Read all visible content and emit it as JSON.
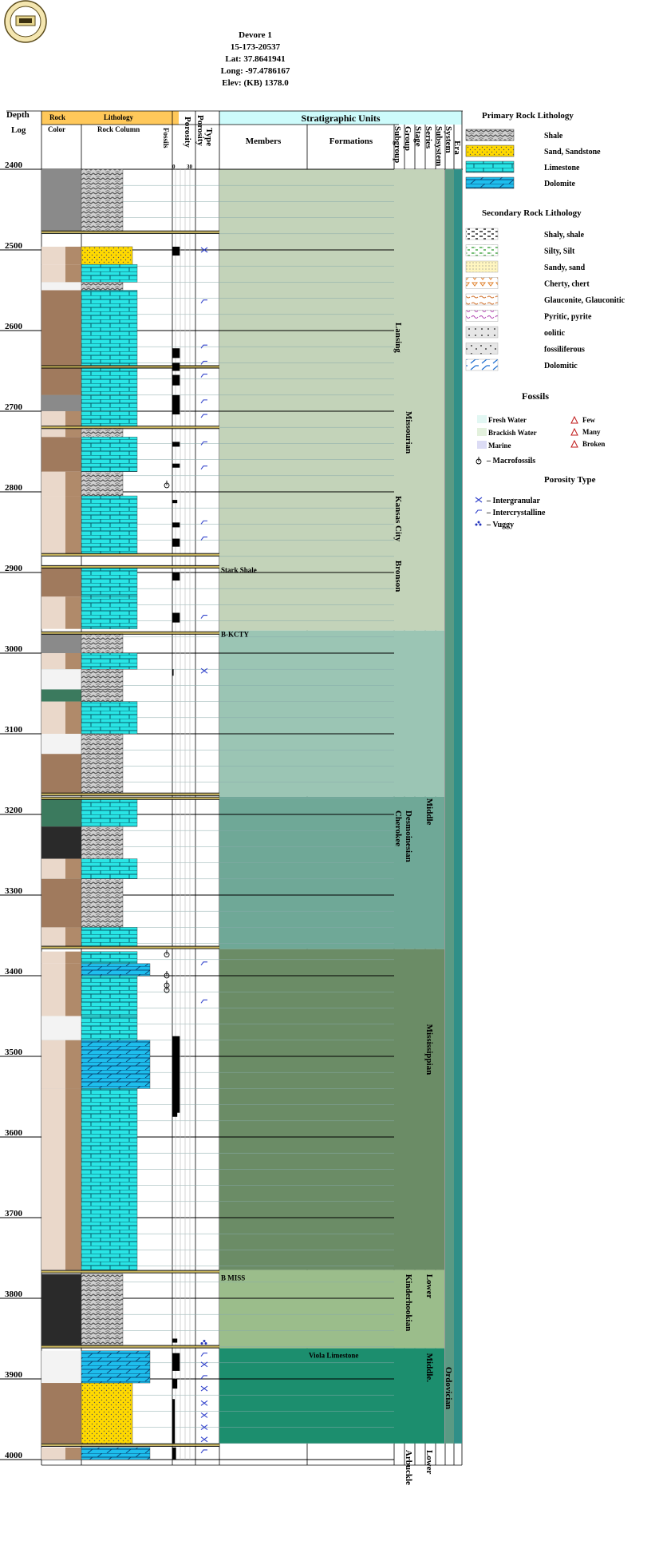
{
  "well": {
    "name": "Devore 1",
    "api": "15-173-20537",
    "lat": "Lat: 37.8641941",
    "long": "Long: -97.4786167",
    "elev": "Elev: (KB) 1378.0"
  },
  "columns": {
    "depth": "Depth",
    "log": "Log",
    "rock": "Rock",
    "color": "Color",
    "lithology": "Lithology",
    "rock_column": "Rock Column",
    "fossils": "Fossils",
    "porosity": "Porosity",
    "porosity_scale_min": "0",
    "porosity_scale_max": "30",
    "type": "Type",
    "porosity_type": "Porosity",
    "strat_units": "Stratigraphic Units",
    "members": "Members",
    "formations": "Formations",
    "subgroup": "Subgroup",
    "group": "Group",
    "stage": "Stage",
    "series": "Series",
    "subsystem": "Subsystem",
    "system": "System",
    "era": "Era"
  },
  "depths": [
    {
      "label": "2400",
      "value": 2400
    },
    {
      "label": "2500",
      "value": 2500
    },
    {
      "label": "2600",
      "value": 2600
    },
    {
      "label": "2700",
      "value": 2700
    },
    {
      "label": "2800",
      "value": 2800
    },
    {
      "label": "2900",
      "value": 2900
    },
    {
      "label": "3000",
      "value": 3000
    },
    {
      "label": "3100",
      "value": 3100
    },
    {
      "label": "3200",
      "value": 3200
    },
    {
      "label": "3300",
      "value": 3300
    },
    {
      "label": "3400",
      "value": 3400
    },
    {
      "label": "3500",
      "value": 3500
    },
    {
      "label": "3600",
      "value": 3600
    },
    {
      "label": "3700",
      "value": 3700
    },
    {
      "label": "3800",
      "value": 3800
    },
    {
      "label": "3900",
      "value": 3900
    },
    {
      "label": "4000",
      "value": 4000
    }
  ],
  "units": {
    "members": [
      {
        "name": "Stark Shale",
        "top": 2892
      },
      {
        "name": "B-KCTY",
        "top": 2972
      },
      {
        "name": "B MISS",
        "top": 3770
      }
    ],
    "formations": [
      {
        "name": "Viola Limestone",
        "top": 3866
      }
    ],
    "subgroups": [
      {
        "name": "Lansing",
        "from": 2590,
        "to": 2660
      },
      {
        "name": "Kansas City",
        "from": 2805,
        "to": 2880
      },
      {
        "name": "Bronson",
        "from": 2885,
        "to": 2945
      },
      {
        "name": "Cherokee",
        "from": 3195,
        "to": 3250
      }
    ],
    "stages": [
      {
        "name": "Missourian",
        "from": 2700,
        "to": 2790
      },
      {
        "name": "Desmoinesian",
        "from": 3195,
        "to": 3255
      },
      {
        "name": "Kinderhookian",
        "from": 3770,
        "to": 3850
      },
      {
        "name": "Arbuckle",
        "from": 3988,
        "to": 4040
      }
    ],
    "series": [
      {
        "name": "Middle",
        "from": 3180,
        "to": 3215
      },
      {
        "name": "Mississippian",
        "from": 3460,
        "to": 3600
      },
      {
        "name": "Lower",
        "from": 3770,
        "to": 3800
      },
      {
        "name": "Middle.",
        "from": 3868,
        "to": 3910
      },
      {
        "name": "Lower",
        "from": 3988,
        "to": 4015
      }
    ],
    "systems": [
      {
        "name": "Ordovician",
        "from": 3885,
        "to": 3945
      }
    ],
    "colors": [
      {
        "from": 2400,
        "to": 2972,
        "color": "#c3d3b9"
      },
      {
        "from": 2972,
        "to": 3178,
        "color": "#9bc5b4"
      },
      {
        "from": 3178,
        "to": 3367,
        "color": "#6fa897"
      },
      {
        "from": 3367,
        "to": 3765,
        "color": "#6b8c66"
      },
      {
        "from": 3765,
        "to": 3862,
        "color": "#9bbd8b"
      },
      {
        "from": 3862,
        "to": 3980,
        "color": "#1c8e6e"
      }
    ]
  },
  "legend": {
    "primary_title": "Primary Rock Lithology",
    "primary": [
      {
        "label": "Shale",
        "pattern": "shale"
      },
      {
        "label": "Sand, Sandstone",
        "pattern": "sand"
      },
      {
        "label": "Limestone",
        "pattern": "limestone"
      },
      {
        "label": "Dolomite",
        "pattern": "dolomite"
      }
    ],
    "secondary_title": "Secondary Rock Lithology",
    "secondary": [
      {
        "label": "Shaly, shale",
        "pattern": "shaly"
      },
      {
        "label": "Silty, Silt",
        "pattern": "silty"
      },
      {
        "label": "Sandy, sand",
        "pattern": "sandy"
      },
      {
        "label": "Cherty, chert",
        "pattern": "cherty"
      },
      {
        "label": "Glauconite, Glauconitic",
        "pattern": "glauconite"
      },
      {
        "label": "Pyritic, pyrite",
        "pattern": "pyritic"
      },
      {
        "label": "oolitic",
        "pattern": "oolitic"
      },
      {
        "label": "fossiliferous",
        "pattern": "fossiliferous"
      },
      {
        "label": "Dolomitic",
        "pattern": "dolomitic"
      }
    ],
    "fossils_title": "Fossils",
    "fossils_env": [
      {
        "label": "Fresh Water",
        "color": "#e2f7f3"
      },
      {
        "label": "Brackish Water",
        "color": "#e3f1dd"
      },
      {
        "label": "Marine",
        "color": "#dcdcf5"
      }
    ],
    "fossils_abundance": [
      {
        "label": "Few"
      },
      {
        "label": "Many"
      },
      {
        "label": "Broken"
      }
    ],
    "macrofossils": "– Macrofossils",
    "porosity_title": "Porosity Type",
    "porosity_types": [
      {
        "label": "– Intergranular",
        "symbol": "x"
      },
      {
        "label": "– Intercrystalline",
        "symbol": "slash"
      },
      {
        "label": "– Vuggy",
        "symbol": "vug"
      }
    ]
  },
  "chart_data": {
    "type": "table",
    "title": "Devore 1",
    "depth_range": [
      2400,
      4000
    ],
    "color_scheme": {
      "shale": "#8a8a8a",
      "shale_dark": "#2a2a2a",
      "brown": "#a07a5d",
      "tan": "#ead8ca",
      "green": "#3b7a5e",
      "light": "#f3f3f3",
      "limestone": "#29e5e5",
      "sand": "#ffd900",
      "dolomite": "#1ebeed"
    },
    "lithology": [
      {
        "top": 2400,
        "bottom": 2478,
        "lith": "shale",
        "color": "shale"
      },
      {
        "top": 2496,
        "bottom": 2518,
        "lith": "sand",
        "color": "tan"
      },
      {
        "top": 2518,
        "bottom": 2540,
        "lith": "limestone",
        "color": "tan"
      },
      {
        "top": 2540,
        "bottom": 2550,
        "lith": "shale",
        "color": "light"
      },
      {
        "top": 2550,
        "bottom": 2680,
        "lith": "limestone",
        "color": "brown"
      },
      {
        "top": 2680,
        "bottom": 2700,
        "lith": "limestone",
        "color": "shale"
      },
      {
        "top": 2700,
        "bottom": 2720,
        "lith": "limestone",
        "color": "tan"
      },
      {
        "top": 2720,
        "bottom": 2732,
        "lith": "shale",
        "color": "tan"
      },
      {
        "top": 2732,
        "bottom": 2775,
        "lith": "limestone",
        "color": "brown"
      },
      {
        "top": 2775,
        "bottom": 2805,
        "lith": "shale",
        "color": "tan"
      },
      {
        "top": 2805,
        "bottom": 2878,
        "lith": "limestone",
        "color": "tan"
      },
      {
        "top": 2893,
        "bottom": 2930,
        "lith": "limestone",
        "color": "brown"
      },
      {
        "top": 2930,
        "bottom": 2970,
        "lith": "limestone",
        "color": "tan"
      },
      {
        "top": 2975,
        "bottom": 3000,
        "lith": "shale",
        "color": "shale"
      },
      {
        "top": 3000,
        "bottom": 3020,
        "lith": "limestone",
        "color": "tan"
      },
      {
        "top": 3020,
        "bottom": 3045,
        "lith": "shale",
        "color": "light"
      },
      {
        "top": 3045,
        "bottom": 3060,
        "lith": "shale",
        "color": "green"
      },
      {
        "top": 3060,
        "bottom": 3100,
        "lith": "limestone",
        "color": "tan"
      },
      {
        "top": 3100,
        "bottom": 3125,
        "lith": "shale",
        "color": "light"
      },
      {
        "top": 3125,
        "bottom": 3175,
        "lith": "shale",
        "color": "brown"
      },
      {
        "top": 3180,
        "bottom": 3215,
        "lith": "limestone",
        "color": "green"
      },
      {
        "top": 3215,
        "bottom": 3255,
        "lith": "shale",
        "color": "shale_dark"
      },
      {
        "top": 3255,
        "bottom": 3280,
        "lith": "limestone",
        "color": "tan"
      },
      {
        "top": 3280,
        "bottom": 3340,
        "lith": "shale",
        "color": "brown"
      },
      {
        "top": 3340,
        "bottom": 3365,
        "lith": "limestone",
        "color": "tan"
      },
      {
        "top": 3370,
        "bottom": 3385,
        "lith": "limestone",
        "color": "tan"
      },
      {
        "top": 3385,
        "bottom": 3400,
        "lith": "dolomite",
        "color": "tan"
      },
      {
        "top": 3400,
        "bottom": 3450,
        "lith": "limestone",
        "color": "tan"
      },
      {
        "top": 3450,
        "bottom": 3480,
        "lith": "limestone",
        "color": "light"
      },
      {
        "top": 3480,
        "bottom": 3540,
        "lith": "dolomite",
        "color": "tan"
      },
      {
        "top": 3540,
        "bottom": 3765,
        "lith": "limestone",
        "color": "tan"
      },
      {
        "top": 3770,
        "bottom": 3858,
        "lith": "shale",
        "color": "shale_dark"
      },
      {
        "top": 3865,
        "bottom": 3905,
        "lith": "dolomite",
        "color": "light"
      },
      {
        "top": 3905,
        "bottom": 3980,
        "lith": "sand",
        "color": "brown"
      },
      {
        "top": 3985,
        "bottom": 4000,
        "lith": "dolomite",
        "color": "tan"
      }
    ],
    "boundaries": [
      2478,
      2645,
      2720,
      2878,
      2893,
      2975,
      3175,
      3180,
      3365,
      3767,
      3860,
      3982
    ],
    "porosity": [
      {
        "top": 2496,
        "bottom": 2507,
        "value": 6
      },
      {
        "top": 2622,
        "bottom": 2634,
        "value": 6
      },
      {
        "top": 2640,
        "bottom": 2650,
        "value": 6
      },
      {
        "top": 2655,
        "bottom": 2668,
        "value": 6
      },
      {
        "top": 2680,
        "bottom": 2704,
        "value": 6
      },
      {
        "top": 2738,
        "bottom": 2744,
        "value": 6
      },
      {
        "top": 2765,
        "bottom": 2770,
        "value": 6
      },
      {
        "top": 2810,
        "bottom": 2814,
        "value": 4
      },
      {
        "top": 2838,
        "bottom": 2844,
        "value": 6
      },
      {
        "top": 2858,
        "bottom": 2868,
        "value": 6
      },
      {
        "top": 2900,
        "bottom": 2910,
        "value": 6
      },
      {
        "top": 2950,
        "bottom": 2962,
        "value": 6
      },
      {
        "top": 3020,
        "bottom": 3028,
        "value": 1
      },
      {
        "top": 3475,
        "bottom": 3570,
        "value": 6
      },
      {
        "top": 3545,
        "bottom": 3575,
        "value": 4
      },
      {
        "top": 3850,
        "bottom": 3855,
        "value": 4
      },
      {
        "top": 3868,
        "bottom": 3890,
        "value": 6
      },
      {
        "top": 3900,
        "bottom": 3912,
        "value": 4
      },
      {
        "top": 3925,
        "bottom": 3980,
        "value": 2
      },
      {
        "top": 3985,
        "bottom": 4000,
        "value": 3
      }
    ],
    "porosity_symbols": [
      {
        "depth": 2500,
        "symbol": "x"
      },
      {
        "depth": 2564,
        "symbol": "slash"
      },
      {
        "depth": 2620,
        "symbol": "slash"
      },
      {
        "depth": 2640,
        "symbol": "slash"
      },
      {
        "depth": 2656,
        "symbol": "slash"
      },
      {
        "depth": 2688,
        "symbol": "slash"
      },
      {
        "depth": 2706,
        "symbol": "slash"
      },
      {
        "depth": 2740,
        "symbol": "slash"
      },
      {
        "depth": 2770,
        "symbol": "slash"
      },
      {
        "depth": 2838,
        "symbol": "slash"
      },
      {
        "depth": 2858,
        "symbol": "slash"
      },
      {
        "depth": 2955,
        "symbol": "slash"
      },
      {
        "depth": 3022,
        "symbol": "x"
      },
      {
        "depth": 3385,
        "symbol": "slash"
      },
      {
        "depth": 3432,
        "symbol": "slash"
      },
      {
        "depth": 3855,
        "symbol": "vug"
      },
      {
        "depth": 3870,
        "symbol": "slash"
      },
      {
        "depth": 3882,
        "symbol": "x"
      },
      {
        "depth": 3898,
        "symbol": "slash"
      },
      {
        "depth": 3912,
        "symbol": "x"
      },
      {
        "depth": 3930,
        "symbol": "x"
      },
      {
        "depth": 3945,
        "symbol": "x"
      },
      {
        "depth": 3960,
        "symbol": "x"
      },
      {
        "depth": 3975,
        "symbol": "x"
      },
      {
        "depth": 3990,
        "symbol": "slash"
      }
    ],
    "macrofossil_depths": [
      2790,
      3372,
      3398,
      3410,
      3416
    ]
  }
}
